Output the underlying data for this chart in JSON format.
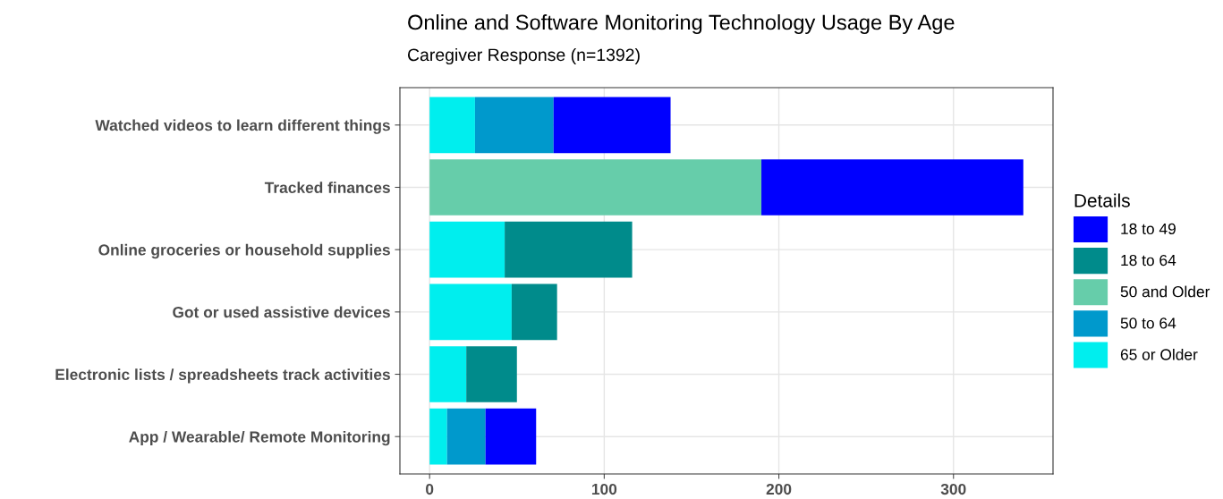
{
  "chart_data": {
    "type": "bar",
    "orientation": "horizontal",
    "stacked": true,
    "title": "Online and Software Monitoring Technology Usage By Age",
    "subtitle": "Caregiver Response (n=1392)",
    "legend_title": "Details",
    "categories": [
      "Watched videos to learn different things",
      "Tracked finances",
      "Online groceries or household supplies",
      "Got or used assistive devices",
      "Electronic lists / spreadsheets track activities",
      "App / Wearable/ Remote Monitoring"
    ],
    "series": [
      {
        "name": "65 or Older",
        "color": "#00eeee",
        "values": [
          26,
          null,
          43,
          47,
          21,
          10
        ]
      },
      {
        "name": "50 to 64",
        "color": "#0099cc",
        "values": [
          45,
          null,
          null,
          null,
          null,
          22
        ]
      },
      {
        "name": "50 and Older",
        "color": "#66cdaa",
        "values": [
          null,
          190,
          null,
          null,
          null,
          null
        ]
      },
      {
        "name": "18 to 64",
        "color": "#008b8b",
        "values": [
          null,
          null,
          73,
          26,
          29,
          null
        ]
      },
      {
        "name": "18 to 49",
        "color": "#0000ff",
        "values": [
          67,
          150,
          null,
          null,
          null,
          29
        ]
      }
    ],
    "xlim": [
      -17,
      357
    ],
    "xticks": [
      0,
      100,
      200,
      300
    ],
    "grid": true,
    "legend": "right"
  }
}
